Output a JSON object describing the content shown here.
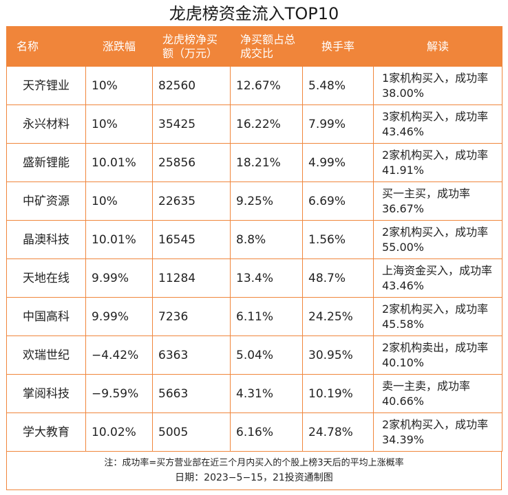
{
  "title": "龙虎榜资金流入TOP10",
  "columns": [
    "名称",
    "涨跌幅",
    "龙虎榜净买额（万元）",
    "净买额占总成交比",
    "换手率",
    "解读"
  ],
  "rows": [
    {
      "name": "天齐锂业",
      "change": "10%",
      "net_buy": "82560",
      "ratio": "12.67%",
      "turnover": "5.48%",
      "note": "1家机构买入，成功率38.00%"
    },
    {
      "name": "永兴材料",
      "change": "10%",
      "net_buy": "35425",
      "ratio": "16.22%",
      "turnover": "7.99%",
      "note": "3家机构买入，成功率43.46%"
    },
    {
      "name": "盛新锂能",
      "change": "10.01%",
      "net_buy": "25856",
      "ratio": "18.21%",
      "turnover": "4.99%",
      "note": "2家机构买入，成功率41.91%"
    },
    {
      "name": "中矿资源",
      "change": "10%",
      "net_buy": "22635",
      "ratio": "9.25%",
      "turnover": "6.69%",
      "note": "买一主买，成功率36.67%"
    },
    {
      "name": "晶澳科技",
      "change": "10.01%",
      "net_buy": "16545",
      "ratio": "8.8%",
      "turnover": "1.56%",
      "note": "2家机构买入，成功率55.00%"
    },
    {
      "name": "天地在线",
      "change": "9.99%",
      "net_buy": "11284",
      "ratio": "13.4%",
      "turnover": "48.7%",
      "note": "上海资金买入，成功率43.46%"
    },
    {
      "name": "中国高科",
      "change": "9.99%",
      "net_buy": "7236",
      "ratio": "6.11%",
      "turnover": "24.25%",
      "note": "2家机构买入，成功率45.58%"
    },
    {
      "name": "欢瑞世纪",
      "change": "−4.42%",
      "net_buy": "6363",
      "ratio": "5.04%",
      "turnover": "30.95%",
      "note": "2家机构卖出，成功率40.10%"
    },
    {
      "name": "掌阅科技",
      "change": "−9.59%",
      "net_buy": "5663",
      "ratio": "4.31%",
      "turnover": "10.19%",
      "note": "卖一主卖，成功率40.66%"
    },
    {
      "name": "学大教育",
      "change": "10.02%",
      "net_buy": "5005",
      "ratio": "6.16%",
      "turnover": "24.78%",
      "note": "2家机构买入，成功率34.39%"
    }
  ],
  "footnote": "注：成功率=买方营业部在近三个月内买入的个股上榜3天后的平均上涨概率",
  "date_line": "日期：2023−5−15，21投资通制图",
  "colors": {
    "header_bg": "#f0853a",
    "border": "#f0853a"
  }
}
